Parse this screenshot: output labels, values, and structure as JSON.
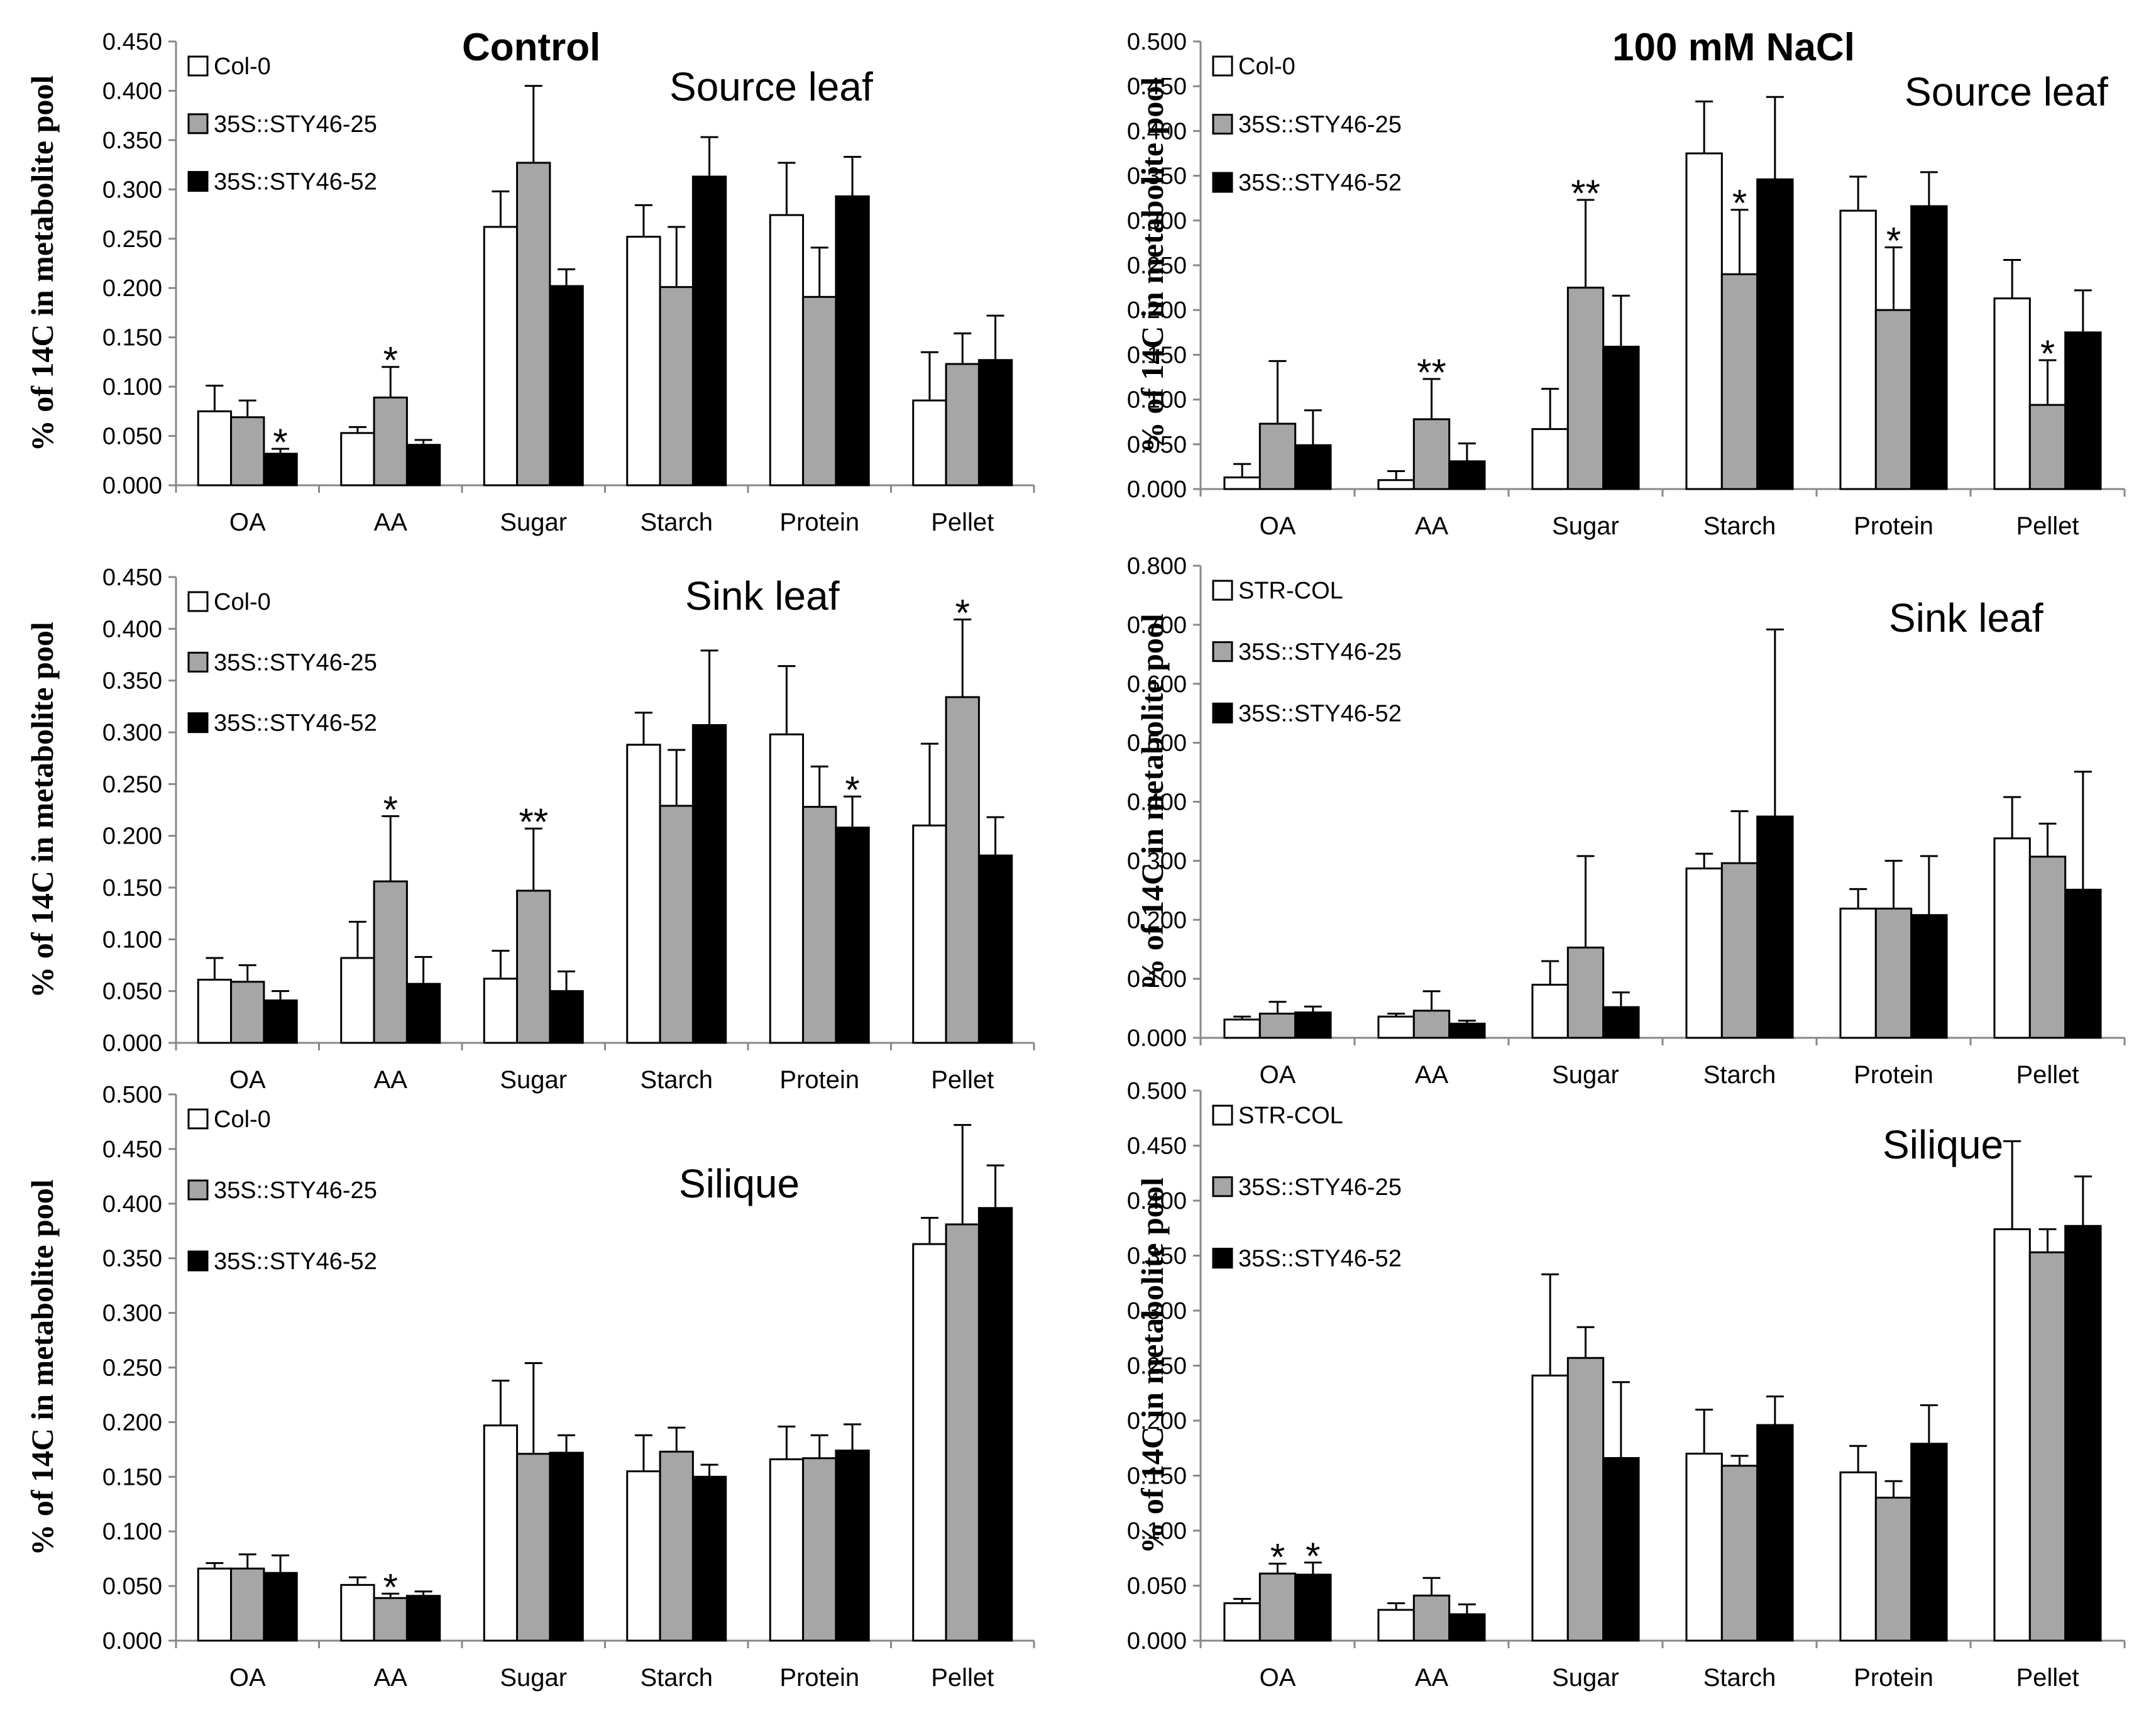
{
  "figure": {
    "section_titles": {
      "control": "Control",
      "nacl": "100 mM NaCl"
    },
    "colors": {
      "Col-0": "#ffffff",
      "STR-COL": "#ffffff",
      "35S::STY46-25": "#a6a6a6",
      "35S::STY46-52": "#000000"
    }
  },
  "chart_data": [
    {
      "type": "bar",
      "title": "Source leaf",
      "ylabel": "% of 14C in metabolite pool",
      "categories": [
        "OA",
        "AA",
        "Sugar",
        "Starch",
        "Protein",
        "Pellet"
      ],
      "ylim": [
        0,
        0.45
      ],
      "yticks": [
        "0.000",
        "0.050",
        "0.100",
        "0.150",
        "0.200",
        "0.250",
        "0.300",
        "0.350",
        "0.400",
        "0.450"
      ],
      "legend": "top-left",
      "series": [
        {
          "name": "Col-0",
          "values": [
            0.075,
            0.053,
            0.262,
            0.252,
            0.274,
            0.086
          ],
          "errors": [
            0.026,
            0.006,
            0.036,
            0.032,
            0.053,
            0.049
          ]
        },
        {
          "name": "35S::STY46-25",
          "values": [
            0.069,
            0.089,
            0.327,
            0.201,
            0.191,
            0.123
          ],
          "errors": [
            0.017,
            0.031,
            0.078,
            0.061,
            0.05,
            0.031
          ]
        },
        {
          "name": "35S::STY46-52",
          "values": [
            0.032,
            0.041,
            0.202,
            0.313,
            0.293,
            0.127
          ],
          "errors": [
            0.005,
            0.005,
            0.017,
            0.04,
            0.04,
            0.045
          ]
        }
      ],
      "annotations": [
        {
          "category": "OA",
          "series": 2,
          "text": "*"
        },
        {
          "category": "AA",
          "series": 1,
          "text": "*"
        }
      ]
    },
    {
      "type": "bar",
      "title": "Source leaf",
      "ylabel": "% of 14C in metabolite pool",
      "categories": [
        "OA",
        "AA",
        "Sugar",
        "Starch",
        "Protein",
        "Pellet"
      ],
      "ylim": [
        0,
        0.5
      ],
      "yticks": [
        "0.000",
        "0.050",
        "0.100",
        "0.150",
        "0.200",
        "0.250",
        "0.300",
        "0.350",
        "0.400",
        "0.450",
        "0.500"
      ],
      "legend": "top-left",
      "series": [
        {
          "name": "Col-0",
          "values": [
            0.013,
            0.01,
            0.067,
            0.375,
            0.311,
            0.213
          ],
          "errors": [
            0.015,
            0.01,
            0.045,
            0.058,
            0.038,
            0.043
          ]
        },
        {
          "name": "35S::STY46-25",
          "values": [
            0.073,
            0.078,
            0.225,
            0.24,
            0.2,
            0.094
          ],
          "errors": [
            0.07,
            0.045,
            0.098,
            0.072,
            0.07,
            0.05
          ]
        },
        {
          "name": "35S::STY46-52",
          "values": [
            0.049,
            0.031,
            0.159,
            0.346,
            0.316,
            0.175
          ],
          "errors": [
            0.039,
            0.02,
            0.057,
            0.092,
            0.038,
            0.047
          ]
        }
      ],
      "annotations": [
        {
          "category": "AA",
          "series": 1,
          "text": "**"
        },
        {
          "category": "Sugar",
          "series": 1,
          "text": "**"
        },
        {
          "category": "Starch",
          "series": 1,
          "text": "*"
        },
        {
          "category": "Protein",
          "series": 1,
          "text": "*"
        },
        {
          "category": "Pellet",
          "series": 1,
          "text": "*"
        }
      ]
    },
    {
      "type": "bar",
      "title": "Sink leaf",
      "ylabel": "% of 14C in metabolite pool",
      "categories": [
        "OA",
        "AA",
        "Sugar",
        "Starch",
        "Protein",
        "Pellet"
      ],
      "ylim": [
        0,
        0.45
      ],
      "yticks": [
        "0.000",
        "0.050",
        "0.100",
        "0.150",
        "0.200",
        "0.250",
        "0.300",
        "0.350",
        "0.400",
        "0.450"
      ],
      "legend": "top-left",
      "series": [
        {
          "name": "Col-0",
          "values": [
            0.061,
            0.082,
            0.062,
            0.288,
            0.298,
            0.21
          ],
          "errors": [
            0.021,
            0.035,
            0.027,
            0.031,
            0.066,
            0.079
          ]
        },
        {
          "name": "35S::STY46-25",
          "values": [
            0.059,
            0.156,
            0.147,
            0.229,
            0.228,
            0.334
          ],
          "errors": [
            0.016,
            0.063,
            0.06,
            0.054,
            0.039,
            0.075
          ]
        },
        {
          "name": "35S::STY46-52",
          "values": [
            0.041,
            0.057,
            0.05,
            0.307,
            0.208,
            0.181
          ],
          "errors": [
            0.009,
            0.026,
            0.019,
            0.072,
            0.03,
            0.037
          ]
        }
      ],
      "annotations": [
        {
          "category": "AA",
          "series": 1,
          "text": "*"
        },
        {
          "category": "Sugar",
          "series": 1,
          "text": "**"
        },
        {
          "category": "Protein",
          "series": 2,
          "text": "*"
        },
        {
          "category": "Pellet",
          "series": 1,
          "text": "*"
        }
      ]
    },
    {
      "type": "bar",
      "title": "Sink leaf",
      "ylabel": "% of 14C in metabolite pool",
      "categories": [
        "OA",
        "AA",
        "Sugar",
        "Starch",
        "Protein",
        "Pellet"
      ],
      "ylim": [
        0,
        0.8
      ],
      "yticks": [
        "0.000",
        "0.100",
        "0.200",
        "0.300",
        "0.400",
        "0.500",
        "0.600",
        "0.700",
        "0.800"
      ],
      "legend": "top-left",
      "series": [
        {
          "name": "STR-COL",
          "values": [
            0.031,
            0.036,
            0.09,
            0.287,
            0.219,
            0.338
          ],
          "errors": [
            0.005,
            0.005,
            0.04,
            0.025,
            0.033,
            0.07
          ]
        },
        {
          "name": "35S::STY46-25",
          "values": [
            0.041,
            0.046,
            0.153,
            0.296,
            0.219,
            0.307
          ],
          "errors": [
            0.02,
            0.033,
            0.155,
            0.088,
            0.081,
            0.056
          ]
        },
        {
          "name": "35S::STY46-52",
          "values": [
            0.043,
            0.024,
            0.052,
            0.375,
            0.208,
            0.251
          ],
          "errors": [
            0.01,
            0.005,
            0.025,
            0.317,
            0.1,
            0.2
          ]
        }
      ],
      "annotations": []
    },
    {
      "type": "bar",
      "title": "Silique",
      "ylabel": "% of 14C in metabolite pool",
      "categories": [
        "OA",
        "AA",
        "Sugar",
        "Starch",
        "Protein",
        "Pellet"
      ],
      "ylim": [
        0,
        0.5
      ],
      "yticks": [
        "0.000",
        "0.050",
        "0.100",
        "0.150",
        "0.200",
        "0.250",
        "0.300",
        "0.350",
        "0.400",
        "0.450",
        "0.500"
      ],
      "legend": "top-left",
      "series": [
        {
          "name": "Col-0",
          "values": [
            0.066,
            0.051,
            0.197,
            0.155,
            0.166,
            0.363
          ],
          "errors": [
            0.005,
            0.007,
            0.041,
            0.033,
            0.03,
            0.024
          ]
        },
        {
          "name": "35S::STY46-25",
          "values": [
            0.066,
            0.039,
            0.171,
            0.173,
            0.167,
            0.381
          ],
          "errors": [
            0.013,
            0.004,
            0.083,
            0.022,
            0.021,
            0.091
          ]
        },
        {
          "name": "35S::STY46-52",
          "values": [
            0.062,
            0.041,
            0.172,
            0.15,
            0.174,
            0.396
          ],
          "errors": [
            0.016,
            0.004,
            0.016,
            0.011,
            0.024,
            0.039
          ]
        }
      ],
      "annotations": [
        {
          "category": "AA",
          "series": 1,
          "text": "*"
        }
      ]
    },
    {
      "type": "bar",
      "title": "Silique",
      "ylabel": "% of 14C in metabolite pool",
      "categories": [
        "OA",
        "AA",
        "Sugar",
        "Starch",
        "Protein",
        "Pellet"
      ],
      "ylim": [
        0,
        0.5
      ],
      "yticks": [
        "0.000",
        "0.050",
        "0.100",
        "0.150",
        "0.200",
        "0.250",
        "0.300",
        "0.350",
        "0.400",
        "0.450",
        "0.500"
      ],
      "legend": "top-left",
      "series": [
        {
          "name": "STR-COL",
          "values": [
            0.034,
            0.028,
            0.241,
            0.17,
            0.153,
            0.374
          ],
          "errors": [
            0.004,
            0.006,
            0.092,
            0.04,
            0.024,
            0.08
          ]
        },
        {
          "name": "35S::STY46-25",
          "values": [
            0.061,
            0.041,
            0.257,
            0.159,
            0.13,
            0.353
          ],
          "errors": [
            0.009,
            0.016,
            0.028,
            0.009,
            0.015,
            0.021
          ]
        },
        {
          "name": "35S::STY46-52",
          "values": [
            0.06,
            0.024,
            0.166,
            0.196,
            0.179,
            0.377
          ],
          "errors": [
            0.011,
            0.009,
            0.069,
            0.026,
            0.035,
            0.045
          ]
        }
      ],
      "annotations": [
        {
          "category": "OA",
          "series": 1,
          "text": "*"
        },
        {
          "category": "OA",
          "series": 2,
          "text": "*"
        }
      ]
    }
  ]
}
